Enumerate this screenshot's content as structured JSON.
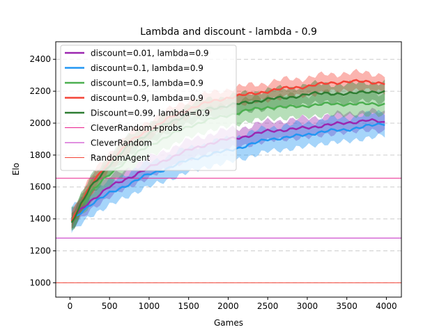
{
  "chart_data": {
    "type": "line",
    "title": "Lambda and discount - lambda - 0.9",
    "xlabel": "Games",
    "ylabel": "Elo",
    "xlim": [
      -180,
      4190
    ],
    "ylim": [
      910,
      2510
    ],
    "xticks": [
      0,
      500,
      1000,
      1500,
      2000,
      2500,
      3000,
      3500,
      4000
    ],
    "yticks": [
      1000,
      1200,
      1400,
      1600,
      1800,
      2000,
      2200,
      2400
    ],
    "grid": "horizontal-dashed",
    "legend_position": "top-left",
    "series": [
      {
        "name": "discount=0.01, lambda=0.9",
        "color": "#9c27b0",
        "band": 60,
        "x": [
          20,
          250,
          500,
          750,
          1000,
          1250,
          1500,
          1750,
          2000,
          2250,
          2500,
          2750,
          3000,
          3250,
          3500,
          3750,
          4000
        ],
        "y": [
          1400,
          1510,
          1600,
          1660,
          1720,
          1780,
          1830,
          1870,
          1900,
          1920,
          1950,
          1960,
          1970,
          1990,
          2000,
          2020,
          2000
        ]
      },
      {
        "name": "discount=0.1, lambda=0.9",
        "color": "#2196f3",
        "band": 75,
        "x": [
          20,
          250,
          500,
          750,
          1000,
          1250,
          1500,
          1750,
          2000,
          2250,
          2500,
          2750,
          3000,
          3250,
          3500,
          3750,
          4000
        ],
        "y": [
          1390,
          1490,
          1560,
          1620,
          1680,
          1720,
          1770,
          1800,
          1830,
          1860,
          1900,
          1910,
          1930,
          1950,
          1960,
          1980,
          2000
        ]
      },
      {
        "name": "discount=0.5, lambda=0.9",
        "color": "#4caf50",
        "band": 70,
        "x": [
          20,
          250,
          500,
          750,
          1000,
          1250,
          1500,
          1750,
          2000,
          2250,
          2500,
          2750,
          3000,
          3250,
          3500,
          3750,
          4000
        ],
        "y": [
          1400,
          1560,
          1680,
          1780,
          1860,
          1920,
          1980,
          2020,
          2050,
          2080,
          2100,
          2100,
          2110,
          2120,
          2120,
          2120,
          2120
        ]
      },
      {
        "name": "discount=0.9, lambda=0.9",
        "color": "#f44336",
        "band": 55,
        "x": [
          20,
          250,
          500,
          750,
          1000,
          1250,
          1500,
          1750,
          2000,
          2250,
          2500,
          2750,
          3000,
          3250,
          3500,
          3750,
          4000
        ],
        "y": [
          1390,
          1600,
          1760,
          1880,
          1960,
          2030,
          2090,
          2130,
          2160,
          2180,
          2200,
          2220,
          2230,
          2250,
          2260,
          2260,
          2250
        ]
      },
      {
        "name": "Discount=0.99, lambda=0.9",
        "color": "#2e7d32",
        "band": 60,
        "x": [
          20,
          250,
          500,
          750,
          1000,
          1250,
          1500,
          1750,
          2000,
          2250,
          2500,
          2750,
          3000,
          3250,
          3500,
          3750,
          4000
        ],
        "y": [
          1380,
          1590,
          1740,
          1860,
          1940,
          2000,
          2060,
          2090,
          2110,
          2130,
          2150,
          2160,
          2180,
          2190,
          2180,
          2200,
          2190
        ]
      }
    ],
    "reference_lines": [
      {
        "name": "CleverRandom+probs",
        "color": "#e91e8c",
        "y": 1655
      },
      {
        "name": "CleverRandom",
        "color": "#c020c0",
        "y": 1280
      },
      {
        "name": "RandomAgent",
        "color": "#f44336",
        "y": 1000
      }
    ]
  }
}
